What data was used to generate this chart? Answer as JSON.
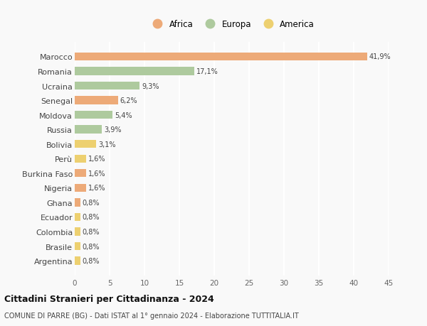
{
  "countries": [
    "Marocco",
    "Romania",
    "Ucraina",
    "Senegal",
    "Moldova",
    "Russia",
    "Bolivia",
    "Perù",
    "Burkina Faso",
    "Nigeria",
    "Ghana",
    "Ecuador",
    "Colombia",
    "Brasile",
    "Argentina"
  ],
  "values": [
    41.9,
    17.1,
    9.3,
    6.2,
    5.4,
    3.9,
    3.1,
    1.6,
    1.6,
    1.6,
    0.8,
    0.8,
    0.8,
    0.8,
    0.8
  ],
  "labels": [
    "41,9%",
    "17,1%",
    "9,3%",
    "6,2%",
    "5,4%",
    "3,9%",
    "3,1%",
    "1,6%",
    "1,6%",
    "1,6%",
    "0,8%",
    "0,8%",
    "0,8%",
    "0,8%",
    "0,8%"
  ],
  "continent": [
    "Africa",
    "Europa",
    "Europa",
    "Africa",
    "Europa",
    "Europa",
    "America",
    "America",
    "Africa",
    "Africa",
    "Africa",
    "America",
    "America",
    "America",
    "America"
  ],
  "colors": {
    "Africa": "#EDAA78",
    "Europa": "#AECA9E",
    "America": "#EDD070"
  },
  "xlim": [
    0,
    45
  ],
  "xticks": [
    0,
    5,
    10,
    15,
    20,
    25,
    30,
    35,
    40,
    45
  ],
  "title": "Cittadini Stranieri per Cittadinanza - 2024",
  "subtitle": "COMUNE DI PARRE (BG) - Dati ISTAT al 1° gennaio 2024 - Elaborazione TUTTITALIA.IT",
  "background_color": "#f9f9f9",
  "grid_color": "#ffffff",
  "bar_height": 0.55
}
